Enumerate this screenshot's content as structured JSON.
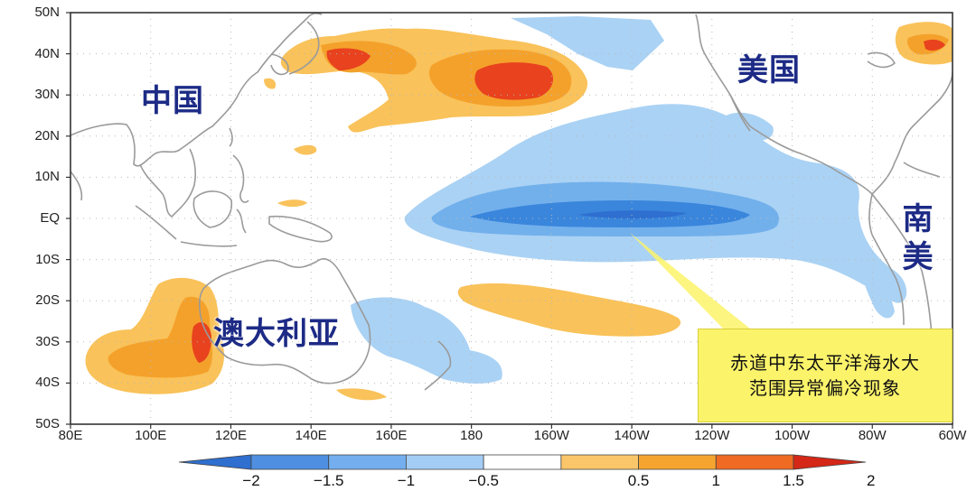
{
  "map": {
    "lat_labels": [
      "50N",
      "40N",
      "30N",
      "20N",
      "10N",
      "EQ",
      "10S",
      "20S",
      "30S",
      "40S",
      "50S"
    ],
    "lon_labels": [
      "80E",
      "100E",
      "120E",
      "140E",
      "160E",
      "180",
      "160W",
      "140W",
      "120W",
      "100W",
      "80W",
      "60W"
    ],
    "regions": {
      "china": "中国",
      "usa": "美国",
      "south_america": "南美",
      "australia": "澳大利亚"
    },
    "annotation": {
      "line1": "赤道中东太平洋海水大",
      "line2": "范围异常偏冷现象"
    },
    "colors": {
      "land_outline": "#9a9a9a",
      "cold_1": "#aad2f4",
      "cold_2": "#72b0ec",
      "cold_3": "#3a86dc",
      "warm_1": "#f9c25a",
      "warm_2": "#f4a12b",
      "warm_3": "#e8421e",
      "label_text": "#1d2b86",
      "annotation_bg": "#fbf36a"
    }
  },
  "colorbar": {
    "ticks": [
      "−2",
      "−1.5",
      "−1",
      "−0.5",
      "0.5",
      "1",
      "1.5",
      "2"
    ],
    "segments": [
      "#2e6fd0",
      "#4f8fe2",
      "#74aeee",
      "#a4cdf6",
      "#ffffff",
      "#fbc66a",
      "#f5a52f",
      "#ef6a22",
      "#d42717"
    ]
  }
}
